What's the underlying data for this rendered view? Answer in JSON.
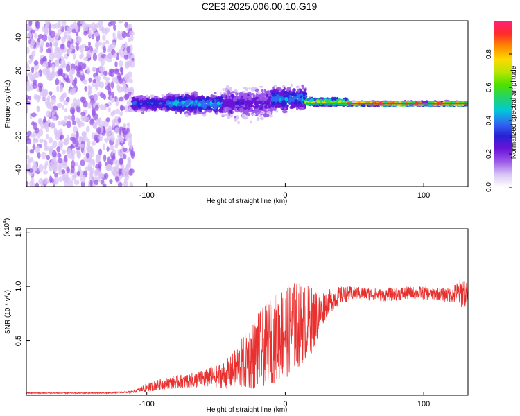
{
  "title": "C2E3.2025.006.00.10.G19",
  "colors": {
    "snr_line": "#e8302f",
    "spectrogram_cmap": [
      "#ffffff",
      "#d9c4f5",
      "#9b59e8",
      "#6a14d8",
      "#2a1fd6",
      "#2f6cf2",
      "#00c8d8",
      "#22d36a",
      "#4ee000",
      "#b8e600",
      "#ffd800",
      "#ff8a00",
      "#ff2a2a",
      "#ff1f7a"
    ]
  },
  "chart_data": [
    {
      "type": "heatmap",
      "title": "C2E3.2025.006.00.10.G19",
      "xlabel": "Height of straight line (km)",
      "ylabel": "Frequency (Hz)",
      "xlim": [
        -187,
        132
      ],
      "ylim": [
        -50,
        50
      ],
      "xticks": [
        -100,
        0,
        100
      ],
      "yticks": [
        -40,
        -20,
        0,
        20,
        40
      ],
      "colorbar": {
        "label": "Normalized spectral amplitude",
        "range": [
          0.0,
          1.0
        ],
        "ticks": [
          "0.0",
          "0.2",
          "0.4",
          "0.6",
          "0.8"
        ]
      },
      "regions": [
        {
          "x_range": [
            -187,
            -110
          ],
          "freq_spread": [
            -50,
            50
          ],
          "amplitude": 0.05,
          "description_level": "broadband noise"
        },
        {
          "x_range": [
            -110,
            -85
          ],
          "freq_center": 0,
          "freq_halfwidth": 6,
          "amplitude": 0.35
        },
        {
          "x_range": [
            -85,
            -45
          ],
          "freq_center": 0,
          "freq_halfwidth": 8,
          "amplitude": 0.45
        },
        {
          "x_range": [
            -45,
            -10
          ],
          "freq_center": 0,
          "freq_halfwidth": 12,
          "amplitude": 0.25
        },
        {
          "x_range": [
            -10,
            15
          ],
          "freq_center": 3,
          "freq_halfwidth": 10,
          "amplitude": 0.4
        },
        {
          "x_range": [
            15,
            45
          ],
          "freq_center": 1,
          "freq_halfwidth": 3,
          "amplitude": 0.75
        },
        {
          "x_range": [
            45,
            132
          ],
          "freq_center": 0,
          "freq_halfwidth": 1.5,
          "amplitude": 0.97
        }
      ]
    },
    {
      "type": "line",
      "xlabel": "Height of straight line (km)",
      "ylabel": "SNR (10 * v/v)",
      "y_multiplier": "(x10^4)",
      "xlim": [
        -187,
        132
      ],
      "ylim": [
        0,
        1.53
      ],
      "xticks": [
        -100,
        0,
        100
      ],
      "yticks": [
        0.5,
        1.0,
        1.5
      ],
      "ytick_labels": [
        "0.5",
        "1.0",
        "1.5"
      ],
      "series": [
        {
          "x": [
            -187,
            -160,
            -130,
            -110,
            -100,
            -90,
            -80,
            -70,
            -60,
            -50,
            -40,
            -30,
            -20,
            -10,
            0,
            10,
            20,
            25,
            30,
            40,
            50,
            60,
            70,
            80,
            90,
            100,
            110,
            120,
            128,
            132
          ],
          "y": [
            0.02,
            0.02,
            0.02,
            0.03,
            0.07,
            0.1,
            0.12,
            0.13,
            0.15,
            0.17,
            0.2,
            0.3,
            0.4,
            0.5,
            0.6,
            0.65,
            0.7,
            0.76,
            0.85,
            0.92,
            0.94,
            0.93,
            0.92,
            0.93,
            0.94,
            0.94,
            0.93,
            0.92,
            0.95,
            0.92
          ],
          "noise": [
            0.005,
            0.005,
            0.005,
            0.01,
            0.04,
            0.05,
            0.06,
            0.07,
            0.08,
            0.1,
            0.15,
            0.25,
            0.35,
            0.4,
            0.45,
            0.4,
            0.3,
            0.2,
            0.12,
            0.08,
            0.06,
            0.06,
            0.06,
            0.06,
            0.06,
            0.06,
            0.06,
            0.07,
            0.15,
            0.1
          ]
        }
      ]
    }
  ]
}
